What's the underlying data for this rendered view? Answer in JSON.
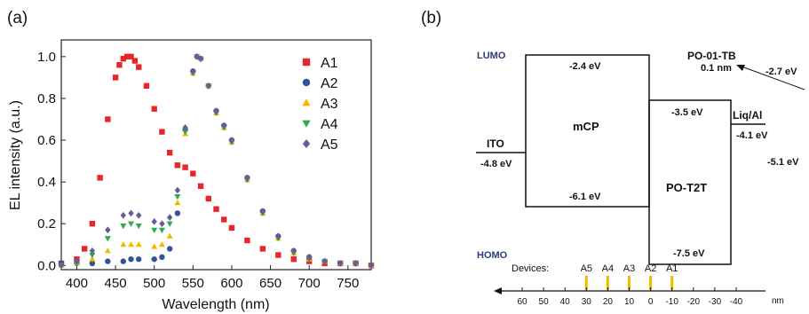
{
  "panel_a_label": "(a)",
  "panel_b_label": "(b)",
  "chart_data": [
    {
      "type": "scatter",
      "xlabel": "Wavelength (nm)",
      "ylabel": "EL intensity (a.u.)",
      "xlim": [
        380,
        780
      ],
      "ylim": [
        -0.02,
        1.08
      ],
      "xticks": [
        400,
        450,
        500,
        550,
        600,
        650,
        700,
        750
      ],
      "yticks": [
        0.0,
        0.2,
        0.4,
        0.6,
        0.8,
        1.0
      ],
      "ytick_labels": [
        "0.0",
        "0.2",
        "0.4",
        "0.6",
        "0.8",
        "1.0"
      ],
      "legend_position": "top-right",
      "series": [
        {
          "name": "A1",
          "color": "#e8262a",
          "marker": "square",
          "x": [
            380,
            400,
            410,
            420,
            430,
            440,
            450,
            455,
            460,
            465,
            470,
            475,
            480,
            490,
            500,
            510,
            520,
            530,
            540,
            550,
            560,
            570,
            580,
            590,
            600,
            620,
            640,
            660,
            680,
            700,
            720,
            740,
            760,
            780
          ],
          "y": [
            0.01,
            0.03,
            0.08,
            0.2,
            0.42,
            0.7,
            0.9,
            0.96,
            0.99,
            1.0,
            1.0,
            0.98,
            0.95,
            0.86,
            0.75,
            0.64,
            0.54,
            0.48,
            0.47,
            0.44,
            0.38,
            0.32,
            0.27,
            0.22,
            0.18,
            0.12,
            0.08,
            0.05,
            0.03,
            0.02,
            0.01,
            0.01,
            0.01,
            0.0
          ]
        },
        {
          "name": "A2",
          "color": "#2f5597",
          "marker": "circle",
          "x": [
            380,
            400,
            420,
            440,
            460,
            470,
            480,
            500,
            510,
            520,
            530,
            540,
            550,
            555,
            560,
            570,
            580,
            590,
            600,
            620,
            640,
            660,
            680,
            700,
            720,
            740,
            760,
            780
          ],
          "y": [
            0.01,
            0.01,
            0.01,
            0.02,
            0.02,
            0.03,
            0.03,
            0.03,
            0.04,
            0.08,
            0.25,
            0.65,
            0.93,
            1.0,
            0.99,
            0.86,
            0.74,
            0.67,
            0.6,
            0.42,
            0.26,
            0.14,
            0.07,
            0.04,
            0.02,
            0.01,
            0.01,
            0.0
          ]
        },
        {
          "name": "A3",
          "color": "#f5b800",
          "marker": "triangle-up",
          "x": [
            380,
            400,
            420,
            440,
            460,
            470,
            480,
            500,
            510,
            520,
            530,
            540,
            550,
            555,
            560,
            570,
            580,
            590,
            600,
            620,
            640,
            660,
            680,
            700,
            720,
            740,
            760,
            780
          ],
          "y": [
            0.0,
            0.01,
            0.03,
            0.07,
            0.1,
            0.1,
            0.1,
            0.09,
            0.1,
            0.14,
            0.3,
            0.63,
            0.92,
            1.0,
            0.99,
            0.86,
            0.73,
            0.66,
            0.59,
            0.41,
            0.25,
            0.13,
            0.06,
            0.03,
            0.02,
            0.01,
            0.01,
            0.0
          ]
        },
        {
          "name": "A4",
          "color": "#2eaa55",
          "marker": "triangle-down",
          "x": [
            380,
            400,
            420,
            440,
            460,
            470,
            480,
            500,
            510,
            520,
            530,
            540,
            550,
            555,
            560,
            570,
            580,
            590,
            600,
            620,
            640,
            660,
            680,
            700,
            720,
            740,
            760,
            780
          ],
          "y": [
            0.0,
            0.01,
            0.05,
            0.13,
            0.19,
            0.2,
            0.19,
            0.17,
            0.17,
            0.2,
            0.33,
            0.64,
            0.92,
            1.0,
            0.99,
            0.86,
            0.73,
            0.66,
            0.59,
            0.41,
            0.25,
            0.13,
            0.06,
            0.03,
            0.02,
            0.01,
            0.01,
            0.0
          ]
        },
        {
          "name": "A5",
          "color": "#6a5a9e",
          "marker": "diamond",
          "x": [
            380,
            400,
            420,
            440,
            460,
            470,
            480,
            500,
            510,
            520,
            530,
            540,
            550,
            555,
            560,
            570,
            580,
            590,
            600,
            620,
            640,
            660,
            680,
            700,
            720,
            740,
            760,
            780
          ],
          "y": [
            0.0,
            0.02,
            0.07,
            0.17,
            0.24,
            0.25,
            0.24,
            0.21,
            0.2,
            0.23,
            0.36,
            0.66,
            0.93,
            1.0,
            0.99,
            0.86,
            0.74,
            0.67,
            0.6,
            0.42,
            0.26,
            0.14,
            0.07,
            0.04,
            0.02,
            0.01,
            0.01,
            0.0
          ]
        }
      ]
    },
    {
      "type": "energy-level-diagram",
      "lumo_label": "LUMO",
      "homo_label": "HOMO",
      "layers": [
        {
          "name": "ITO",
          "level": "-4.8 eV"
        },
        {
          "name": "mCP",
          "lumo": "-2.4 eV",
          "homo": "-6.1 eV"
        },
        {
          "name": "PO-T2T",
          "lumo": "-3.5 eV",
          "homo": "-7.5 eV"
        },
        {
          "name": "Liq/Al",
          "level": "-4.1 eV"
        }
      ],
      "dopant": {
        "name": "PO-01-TB",
        "thickness": "0.1 nm",
        "lumo": "-2.7 eV",
        "homo": "-5.1 eV"
      },
      "devices": {
        "label": "Devices:",
        "names": [
          "A5",
          "A4",
          "A3",
          "A2",
          "A1"
        ],
        "positions_nm": [
          30,
          20,
          10,
          0,
          -10
        ],
        "marker_color": "#f5b800",
        "axis_ticks": [
          "60",
          "50",
          "40",
          "30",
          "20",
          "10",
          "0",
          "-10",
          "-20",
          "-30",
          "-40"
        ],
        "axis_unit": "nm"
      }
    }
  ]
}
